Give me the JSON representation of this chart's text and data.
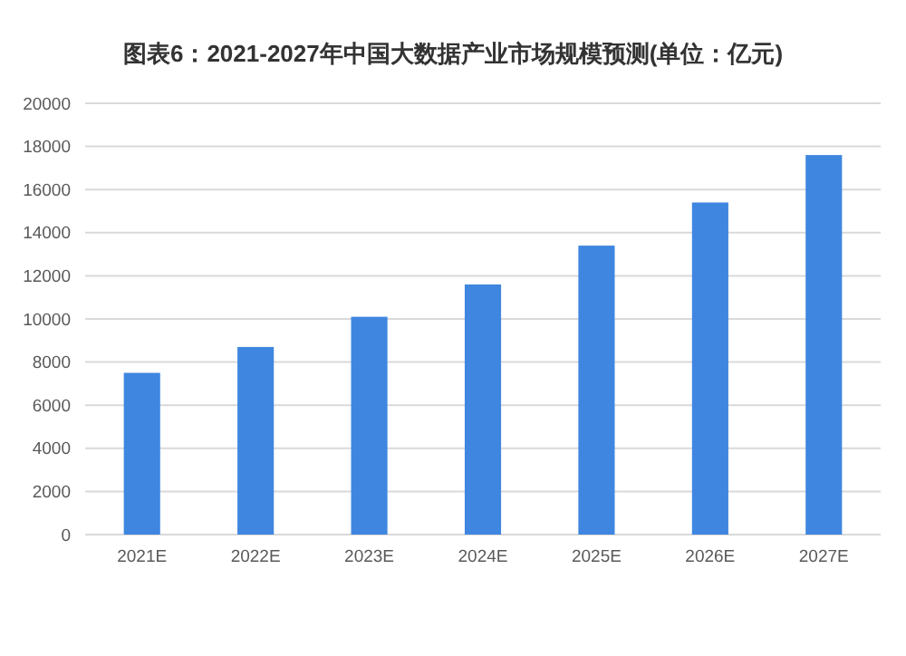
{
  "chart_data": {
    "type": "bar",
    "title": "图表6：2021-2027年中国大数据产业市场规模预测(单位：亿元)",
    "categories": [
      "2021E",
      "2022E",
      "2023E",
      "2024E",
      "2025E",
      "2026E",
      "2027E"
    ],
    "values": [
      7500,
      8700,
      10100,
      11600,
      13400,
      15400,
      17600
    ],
    "color": "#3f86e0",
    "ylim": [
      0,
      20000
    ],
    "yticks": [
      0,
      2000,
      4000,
      6000,
      8000,
      10000,
      12000,
      14000,
      16000,
      18000,
      20000
    ],
    "grid": "y"
  }
}
